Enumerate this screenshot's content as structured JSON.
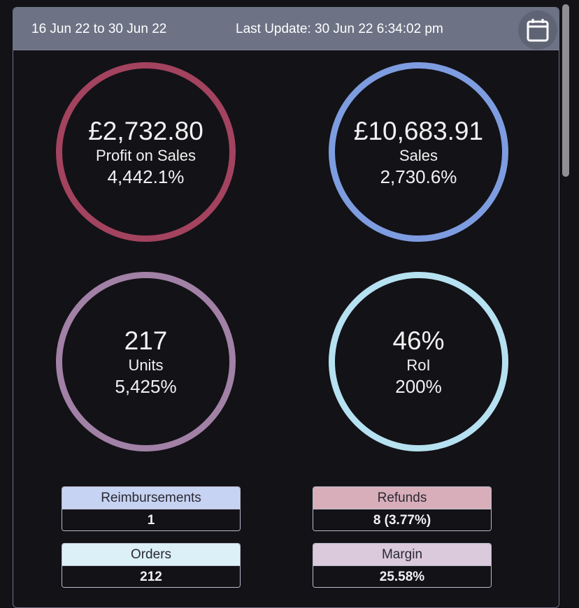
{
  "header": {
    "date_range": "16 Jun 22 to 30 Jun 22",
    "last_update": "Last Update: 30 Jun 22 6:34:02 pm",
    "calendar_icon": "calendar-icon"
  },
  "kpis": [
    {
      "value": "£2,732.80",
      "label": "Profit on Sales",
      "change": "4,442.1%",
      "color": "#a3435f"
    },
    {
      "value": "£10,683.91",
      "label": "Sales",
      "change": "2,730.6%",
      "color": "#7e9ce0"
    },
    {
      "value": "217",
      "label": "Units",
      "change": "5,425%",
      "color": "#a281a6"
    },
    {
      "value": "46%",
      "label": "RoI",
      "change": "200%",
      "color": "#b6e1f1"
    }
  ],
  "cards": [
    {
      "title": "Reimbursements",
      "value": "1",
      "color": "#c7d3f2"
    },
    {
      "title": "Refunds",
      "value": "8 (3.77%)",
      "color": "#d8aeba"
    },
    {
      "title": "Orders",
      "value": "212",
      "color": "#dcf0f8"
    },
    {
      "title": "Margin",
      "value": "25.58%",
      "color": "#dbc9dc"
    }
  ]
}
